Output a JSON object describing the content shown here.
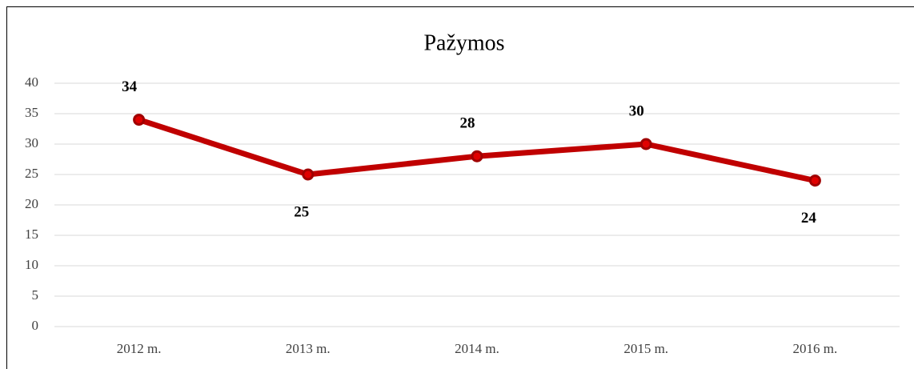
{
  "chart_data": {
    "type": "line",
    "title": "Pažymos",
    "categories": [
      "2012 m.",
      "2013 m.",
      "2014 m.",
      "2015 m.",
      "2016 m."
    ],
    "values": [
      34,
      25,
      28,
      30,
      24
    ],
    "color": "#c00000",
    "ylim": [
      0,
      40
    ],
    "yticks": [
      0,
      5,
      10,
      15,
      20,
      25,
      30,
      35,
      40
    ],
    "grid": true
  }
}
